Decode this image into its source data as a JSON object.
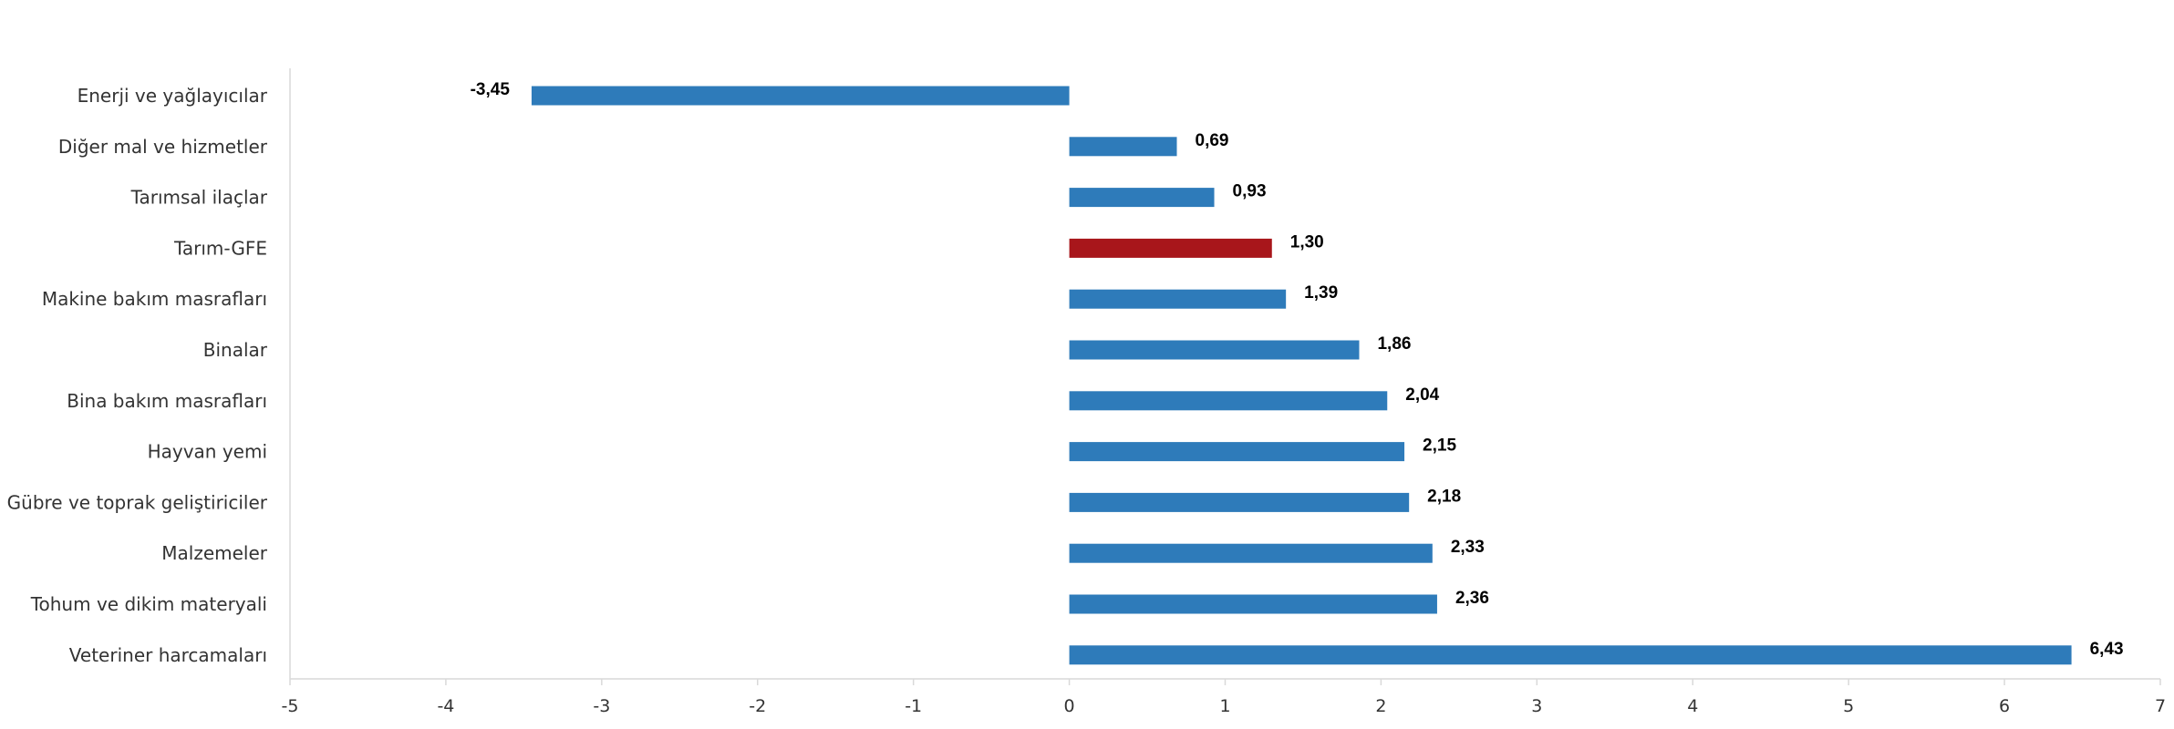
{
  "chart_data": {
    "type": "bar",
    "orientation": "horizontal",
    "title": "",
    "xlabel": "",
    "ylabel": "",
    "xlim": [
      -5,
      7
    ],
    "x_ticks": [
      "-5",
      "-4",
      "-3",
      "-2",
      "-1",
      "0",
      "1",
      "2",
      "3",
      "4",
      "5",
      "6",
      "7"
    ],
    "grid": false,
    "legend": "none",
    "categories": [
      "Enerji  ve yağlayıcılar",
      "Diğer mal ve hizmetler",
      "Tarımsal ilaçlar",
      "Tarım-GFE",
      "Makine bakım masrafları",
      "Binalar",
      "Bina bakım masrafları",
      "Hayvan yemi",
      "Gübre ve toprak geliştiriciler",
      "Malzemeler",
      "Tohum ve dikim materyali",
      "Veteriner harcamaları"
    ],
    "values": [
      -3.45,
      0.69,
      0.93,
      1.3,
      1.39,
      1.86,
      2.04,
      2.15,
      2.18,
      2.33,
      2.36,
      6.43
    ],
    "value_labels": [
      "-3,45",
      "0,69",
      "0,93",
      "1,30",
      "1,39",
      "1,86",
      "2,04",
      "2,15",
      "2,18",
      "2,33",
      "2,36",
      "6,43"
    ],
    "highlight_category": "Tarım-GFE",
    "colors": {
      "default_bar": "#2E7BBA",
      "highlight_bar": "#A8161B",
      "axis": "#D9D9D9",
      "label_text": "#333333",
      "value_text": "#000000"
    }
  }
}
